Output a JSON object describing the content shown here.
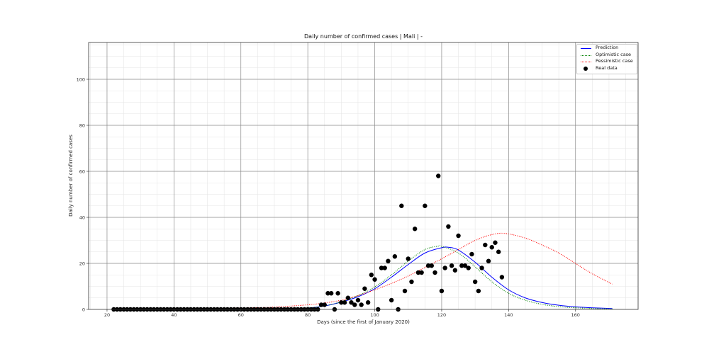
{
  "chart_data": {
    "type": "line",
    "title": "Daily number of confirmed cases | Mali | -",
    "xlabel": "Days (since the first of January 2020)",
    "ylabel": "Daily number of confirmed cases",
    "xlim": [
      14.5,
      178.7
    ],
    "ylim": [
      0,
      116
    ],
    "xticks": [
      20,
      40,
      60,
      80,
      100,
      120,
      140,
      160
    ],
    "yticks": [
      0,
      20,
      40,
      60,
      80,
      100
    ],
    "grid": true,
    "legend_position": "upper right",
    "legend": [
      "Prediction",
      "Optimistic case",
      "Pessimistic case",
      "Real data"
    ],
    "series": [
      {
        "name": "Prediction",
        "style": "solid",
        "color": "#0000ff",
        "x": [
          22,
          30,
          40,
          50,
          60,
          70,
          75,
          80,
          85,
          90,
          95,
          100,
          105,
          110,
          115,
          120,
          122,
          125,
          130,
          135,
          140,
          145,
          150,
          155,
          160,
          165,
          171
        ],
        "values": [
          0,
          0,
          0.05,
          0.1,
          0.2,
          0.3,
          0.4,
          0.6,
          1.5,
          3.2,
          5.5,
          9,
          14,
          19.5,
          24.5,
          26.8,
          27,
          25.8,
          20.5,
          14,
          8.5,
          5,
          3,
          1.8,
          1.1,
          0.7,
          0.4
        ]
      },
      {
        "name": "Optimistic case",
        "style": "dotted",
        "color": "#008000",
        "x": [
          22,
          30,
          40,
          50,
          60,
          70,
          75,
          80,
          85,
          90,
          95,
          100,
          105,
          110,
          115,
          119,
          120,
          125,
          130,
          135,
          140,
          145,
          150,
          155,
          160,
          165,
          171
        ],
        "values": [
          0,
          0,
          0.05,
          0.1,
          0.2,
          0.3,
          0.4,
          0.6,
          1.5,
          3.3,
          6,
          9.8,
          15,
          21,
          26,
          27.5,
          27.4,
          24.5,
          18.5,
          12,
          7,
          4,
          2.2,
          1.2,
          0.7,
          0.4,
          0.2
        ]
      },
      {
        "name": "Pessimistic case",
        "style": "dotted",
        "color": "#ff0000",
        "x": [
          22,
          30,
          40,
          50,
          60,
          70,
          80,
          85,
          90,
          95,
          100,
          105,
          110,
          115,
          120,
          125,
          130,
          135,
          139,
          145,
          150,
          155,
          160,
          165,
          171
        ],
        "values": [
          0,
          0.1,
          0.2,
          0.4,
          0.6,
          1,
          2,
          2.8,
          4,
          6,
          8.5,
          11.3,
          14.5,
          18.2,
          22,
          26,
          30,
          32.5,
          33,
          31,
          28,
          24.5,
          20,
          15.5,
          11
        ]
      },
      {
        "name": "Real data",
        "style": "markers",
        "color": "#000000",
        "x": [
          22,
          23,
          24,
          25,
          26,
          27,
          28,
          29,
          30,
          31,
          32,
          33,
          34,
          35,
          36,
          37,
          38,
          39,
          40,
          41,
          42,
          43,
          44,
          45,
          46,
          47,
          48,
          49,
          50,
          51,
          52,
          53,
          54,
          55,
          56,
          57,
          58,
          59,
          60,
          61,
          62,
          63,
          64,
          65,
          66,
          67,
          68,
          69,
          70,
          71,
          72,
          73,
          74,
          75,
          76,
          77,
          78,
          79,
          80,
          81,
          82,
          83,
          84,
          85,
          86,
          87,
          88,
          89,
          90,
          91,
          92,
          93,
          94,
          95,
          96,
          97,
          98,
          99,
          100,
          101,
          102,
          103,
          104,
          105,
          106,
          107,
          108,
          109,
          110,
          111,
          112,
          113,
          114,
          115,
          116,
          117,
          118,
          119,
          120,
          121,
          122,
          123,
          124,
          125,
          126,
          127,
          128,
          129,
          130,
          131,
          132,
          133,
          134,
          135,
          136,
          137,
          138
        ],
        "values": [
          0,
          0,
          0,
          0,
          0,
          0,
          0,
          0,
          0,
          0,
          0,
          0,
          0,
          0,
          0,
          0,
          0,
          0,
          0,
          0,
          0,
          0,
          0,
          0,
          0,
          0,
          0,
          0,
          0,
          0,
          0,
          0,
          0,
          0,
          0,
          0,
          0,
          0,
          0,
          0,
          0,
          0,
          0,
          0,
          0,
          0,
          0,
          0,
          0,
          0,
          0,
          0,
          0,
          0,
          0,
          0,
          0,
          0,
          0,
          0,
          0,
          0,
          2,
          2,
          7,
          7,
          0,
          7,
          3,
          3,
          5,
          3,
          2,
          4,
          2,
          9,
          3,
          15,
          13,
          0,
          18,
          18,
          21,
          4,
          23,
          0,
          45,
          8,
          22,
          12,
          35,
          16,
          16,
          45,
          19,
          19,
          16,
          58,
          8,
          18,
          36,
          19,
          17,
          32,
          19,
          19,
          18,
          24,
          12,
          8,
          18,
          28,
          21,
          27,
          29,
          25,
          14
        ]
      }
    ]
  }
}
